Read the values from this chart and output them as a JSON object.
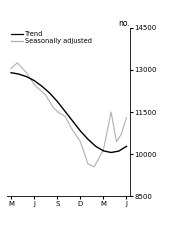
{
  "title": "no.",
  "ylim": [
    8500,
    14500
  ],
  "yticks": [
    8500,
    10000,
    11500,
    13000,
    14500
  ],
  "xtick_labels": [
    "M",
    "J",
    "S",
    "D",
    "M",
    "J"
  ],
  "xtick_positions": [
    0,
    3,
    6,
    9,
    12,
    15
  ],
  "year_2008_x": 0,
  "year_2009_x": 10.5,
  "background_color": "#ffffff",
  "trend_color": "#000000",
  "seasonal_color": "#b0b0b0",
  "legend_trend": "Trend",
  "legend_seasonal": "Seasonally adjusted",
  "trend_data_x": [
    0,
    1,
    2,
    3,
    4,
    5,
    6,
    7,
    8,
    9,
    10,
    11,
    12,
    13,
    14,
    15
  ],
  "trend_data_y": [
    12900,
    12850,
    12760,
    12620,
    12420,
    12180,
    11880,
    11530,
    11180,
    10830,
    10530,
    10280,
    10120,
    10060,
    10110,
    10280
  ],
  "seasonal_data_x": [
    0,
    0.8,
    2,
    3,
    4.5,
    5.5,
    6.2,
    7,
    8,
    9,
    10,
    10.8,
    12,
    13,
    13.7,
    14.3,
    15
  ],
  "seasonal_data_y": [
    13050,
    13250,
    12900,
    12480,
    12100,
    11650,
    11480,
    11350,
    10850,
    10450,
    9650,
    9550,
    10150,
    11500,
    10450,
    10700,
    11300
  ]
}
